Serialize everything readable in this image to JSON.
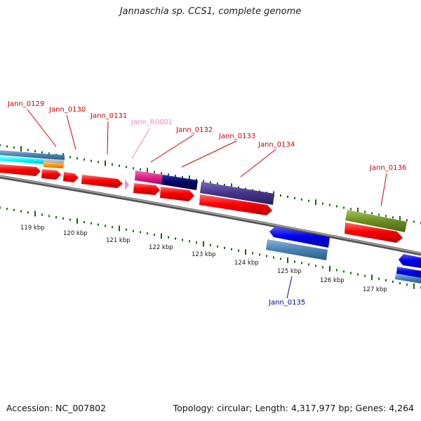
{
  "title": "Jannaschia sp. CCS1, complete genome",
  "footer": {
    "accession": "Accession: NC_007802",
    "topology": "Topology: circular; Length: 4,317,977 bp; Genes: 4,264"
  },
  "scale_labels": [
    "119 kbp",
    "120 kbp",
    "121 kbp",
    "122 kbp",
    "123 kbp",
    "124 kbp",
    "125 kbp",
    "126 kbp",
    "127 kbp"
  ],
  "gene_labels": [
    {
      "id": "Jann_0129",
      "color": "#cc0000"
    },
    {
      "id": "Jann_0130",
      "color": "#cc0000"
    },
    {
      "id": "Jann_0131",
      "color": "#cc0000"
    },
    {
      "id": "Jann_R0001",
      "color": "#ee88cc"
    },
    {
      "id": "Jann_0132",
      "color": "#cc0000"
    },
    {
      "id": "Jann_0133",
      "color": "#cc0000"
    },
    {
      "id": "Jann_0134",
      "color": "#cc0000"
    },
    {
      "id": "Jann_0136",
      "color": "#cc0000"
    },
    {
      "id": "Jann_0135",
      "color": "#000099"
    }
  ],
  "colors": {
    "cds": "#ff0000",
    "trna": "#ff88cc",
    "backbone": "#777777",
    "ticks": "#116611",
    "blue_gene": "#0000ee",
    "steel_blue": "#4682b4",
    "magenta": "#dd2288",
    "navy": "#000066",
    "dark_slate": "#443388",
    "olive": "#6b8e23",
    "cyan": "#00ffff",
    "orange": "#ff9900",
    "grey": "#bbbbbb"
  }
}
